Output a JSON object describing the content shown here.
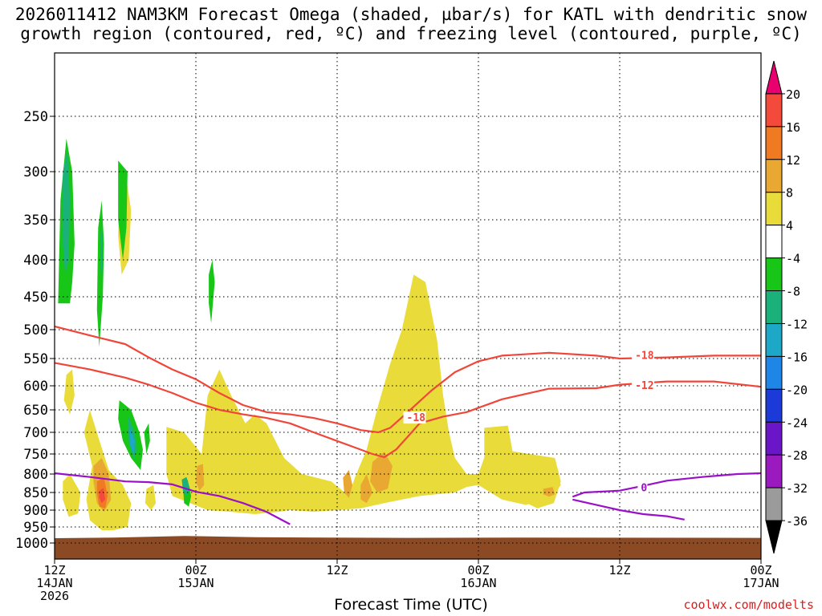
{
  "title_line1": "2026011412 NAM3KM Forecast Omega (shaded, µbar/s) for KATL with dendritic snow",
  "title_line2": "growth region (contoured, red, ºC) and freezing level (contoured, purple, ºC)",
  "credit": "coolwx.com/modelts",
  "chart_data": {
    "type": "contour-cross-section",
    "xlabel": "Forecast Time (UTC)",
    "x_range_hours": [
      0,
      60
    ],
    "x_ticks": [
      {
        "hour": 0,
        "line1": "12Z",
        "line2": "14JAN",
        "line3": "2026"
      },
      {
        "hour": 12,
        "line1": "00Z",
        "line2": "15JAN",
        "line3": ""
      },
      {
        "hour": 24,
        "line1": "12Z",
        "line2": "",
        "line3": ""
      },
      {
        "hour": 36,
        "line1": "00Z",
        "line2": "16JAN",
        "line3": ""
      },
      {
        "hour": 48,
        "line1": "12Z",
        "line2": "",
        "line3": ""
      },
      {
        "hour": 60,
        "line1": "00Z",
        "line2": "17JAN",
        "line3": ""
      }
    ],
    "y_pressure_levels": [
      250,
      300,
      350,
      400,
      450,
      500,
      550,
      600,
      650,
      700,
      750,
      800,
      850,
      900,
      950,
      1000
    ],
    "y_axis": "pressure (hPa), inverted",
    "ground_color": "#8b4a23",
    "colorbar": {
      "labels": [
        "20",
        "16",
        "12",
        "8",
        "4",
        "-4",
        "-8",
        "-12",
        "-16",
        "-20",
        "-24",
        "-28",
        "-32",
        "-36"
      ],
      "colors": [
        "#e8006e",
        "#f44a3c",
        "#f07a22",
        "#e8a832",
        "#e9dc3a",
        "#ffffff",
        "#18c618",
        "#1ab27a",
        "#1ea8c8",
        "#1e86e6",
        "#1c3ad8",
        "#6a16c8",
        "#9a1ac0",
        "#9b9b9b",
        "#000000"
      ]
    },
    "contours": [
      {
        "name": "dgz_-18",
        "color": "#f0463a",
        "label": "-18",
        "points": [
          [
            0,
            495
          ],
          [
            3,
            510
          ],
          [
            6,
            525
          ],
          [
            8,
            548
          ],
          [
            10,
            570
          ],
          [
            12,
            588
          ],
          [
            14,
            615
          ],
          [
            16,
            640
          ],
          [
            18,
            655
          ],
          [
            20,
            660
          ],
          [
            22,
            668
          ],
          [
            24,
            680
          ],
          [
            26,
            695
          ],
          [
            27.5,
            700
          ],
          [
            28.5,
            690
          ],
          [
            30,
            655
          ],
          [
            32,
            610
          ],
          [
            34,
            575
          ],
          [
            36,
            555
          ],
          [
            38,
            545
          ],
          [
            42,
            540
          ],
          [
            46,
            545
          ],
          [
            48,
            550
          ],
          [
            52,
            548
          ],
          [
            56,
            545
          ],
          [
            60,
            545
          ]
        ]
      },
      {
        "name": "dgz_-12",
        "color": "#f0463a",
        "label": "-12",
        "points": [
          [
            0,
            558
          ],
          [
            3,
            570
          ],
          [
            6,
            585
          ],
          [
            8,
            598
          ],
          [
            10,
            615
          ],
          [
            12,
            635
          ],
          [
            14,
            650
          ],
          [
            16,
            660
          ],
          [
            18,
            668
          ],
          [
            20,
            680
          ],
          [
            22,
            700
          ],
          [
            24,
            720
          ],
          [
            25.5,
            735
          ],
          [
            27,
            750
          ],
          [
            28,
            758
          ],
          [
            29,
            740
          ],
          [
            30,
            710
          ],
          [
            31,
            680
          ],
          [
            33,
            665
          ],
          [
            35,
            655
          ],
          [
            38,
            628
          ],
          [
            42,
            606
          ],
          [
            46,
            605
          ],
          [
            48,
            598
          ],
          [
            52,
            592
          ],
          [
            56,
            592
          ],
          [
            60,
            602
          ]
        ]
      },
      {
        "name": "freezing_0",
        "color": "#9a10c8",
        "label": "0",
        "points": [
          [
            0,
            798
          ],
          [
            3,
            808
          ],
          [
            6,
            820
          ],
          [
            8,
            822
          ],
          [
            10,
            828
          ],
          [
            12,
            848
          ],
          [
            14,
            860
          ],
          [
            16,
            880
          ],
          [
            18,
            905
          ],
          [
            20,
            942
          ]
        ]
      },
      {
        "name": "freezing_0_east",
        "color": "#9a10c8",
        "label": "0",
        "points": [
          [
            44,
            862
          ],
          [
            45,
            850
          ],
          [
            48,
            845
          ],
          [
            50,
            832
          ],
          [
            52,
            818
          ],
          [
            55,
            808
          ],
          [
            58,
            800
          ],
          [
            60,
            798
          ]
        ]
      },
      {
        "name": "freezing_0_lower",
        "color": "#9a10c8",
        "label": "",
        "points": [
          [
            44,
            870
          ],
          [
            46,
            885
          ],
          [
            48,
            900
          ],
          [
            50,
            912
          ],
          [
            52,
            918
          ],
          [
            53.5,
            928
          ]
        ]
      }
    ],
    "contour_labels": [
      {
        "text": "-18",
        "hour": 49.3,
        "p": 545,
        "color": "#f0463a"
      },
      {
        "text": "-12",
        "hour": 49.3,
        "p": 600,
        "color": "#f0463a"
      },
      {
        "text": "-18",
        "hour": 29.9,
        "p": 668,
        "color": "#f0463a"
      },
      {
        "text": "0",
        "hour": 49.8,
        "p": 838,
        "color": "#9a10c8"
      }
    ]
  }
}
